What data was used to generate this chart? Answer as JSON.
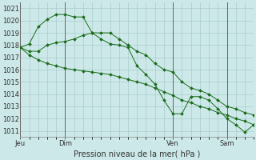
{
  "title": "Pression niveau de la mer( hPa )",
  "bg_color": "#cce8e8",
  "grid_color": "#aacccc",
  "line_color": "#1a6b1a",
  "marker_color": "#1a6b1a",
  "ylim": [
    1010.5,
    1021.5
  ],
  "yticks": [
    1011,
    1012,
    1013,
    1014,
    1015,
    1016,
    1017,
    1018,
    1019,
    1020,
    1021
  ],
  "day_labels": [
    "Jeu",
    "Dim",
    "Ven",
    "Sam"
  ],
  "day_positions": [
    0,
    5,
    17,
    23
  ],
  "series": [
    [
      1017.8,
      1018.1,
      1019.5,
      1020.1,
      1020.5,
      1020.5,
      1020.3,
      1020.3,
      1019.0,
      1018.5,
      1018.1,
      1018.0,
      1017.8,
      1016.3,
      1015.6,
      1014.8,
      1013.5,
      1012.4,
      1012.4,
      1013.8,
      1013.8,
      1013.5,
      1012.8,
      1012.0,
      1011.5,
      1010.9,
      1011.5
    ],
    [
      1017.8,
      1017.5,
      1017.5,
      1018.0,
      1018.2,
      1018.3,
      1018.5,
      1018.8,
      1019.0,
      1019.0,
      1019.0,
      1018.5,
      1018.0,
      1017.5,
      1017.2,
      1016.5,
      1016.0,
      1015.8,
      1015.0,
      1014.5,
      1014.3,
      1014.0,
      1013.5,
      1013.0,
      1012.8,
      1012.5,
      1012.3
    ],
    [
      1017.8,
      1017.2,
      1016.8,
      1016.5,
      1016.3,
      1016.1,
      1016.0,
      1015.9,
      1015.8,
      1015.7,
      1015.6,
      1015.4,
      1015.2,
      1015.0,
      1014.8,
      1014.5,
      1014.2,
      1013.9,
      1013.5,
      1013.3,
      1013.0,
      1012.8,
      1012.5,
      1012.3,
      1012.0,
      1011.8,
      1011.5
    ]
  ],
  "xlim": [
    0,
    26
  ],
  "figwidth": 3.2,
  "figheight": 2.0,
  "dpi": 100
}
